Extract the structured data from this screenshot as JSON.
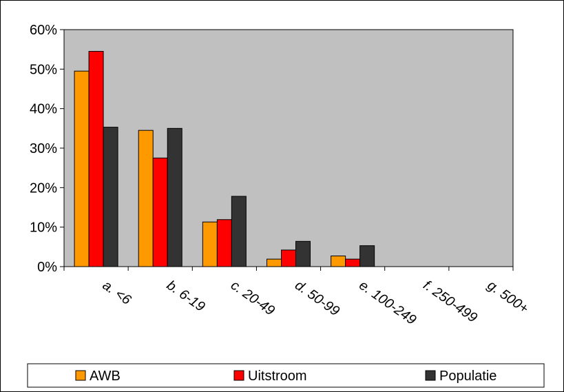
{
  "chart_data": {
    "type": "bar",
    "categories": [
      "a. <6",
      "b. 6-19",
      "c. 20-49",
      "d. 50-99",
      "e. 100-249",
      "f. 250-499",
      "g. 500+"
    ],
    "series": [
      {
        "name": "AWB",
        "color": "#ff9900",
        "values": [
          49.5,
          34.5,
          11.3,
          1.9,
          2.7,
          0,
          0
        ]
      },
      {
        "name": "Uitstroom",
        "color": "#ff0000",
        "values": [
          54.5,
          27.5,
          11.9,
          4.2,
          1.9,
          0,
          0
        ]
      },
      {
        "name": "Populatie",
        "color": "#333333",
        "values": [
          35.3,
          35.0,
          17.8,
          6.4,
          5.3,
          0,
          0
        ]
      }
    ],
    "y_ticks": [
      "0%",
      "10%",
      "20%",
      "30%",
      "40%",
      "50%",
      "60%"
    ],
    "ylim": [
      0,
      60
    ],
    "grid": false,
    "plot_background": "#c0c0c0",
    "legend_position": "bottom"
  }
}
